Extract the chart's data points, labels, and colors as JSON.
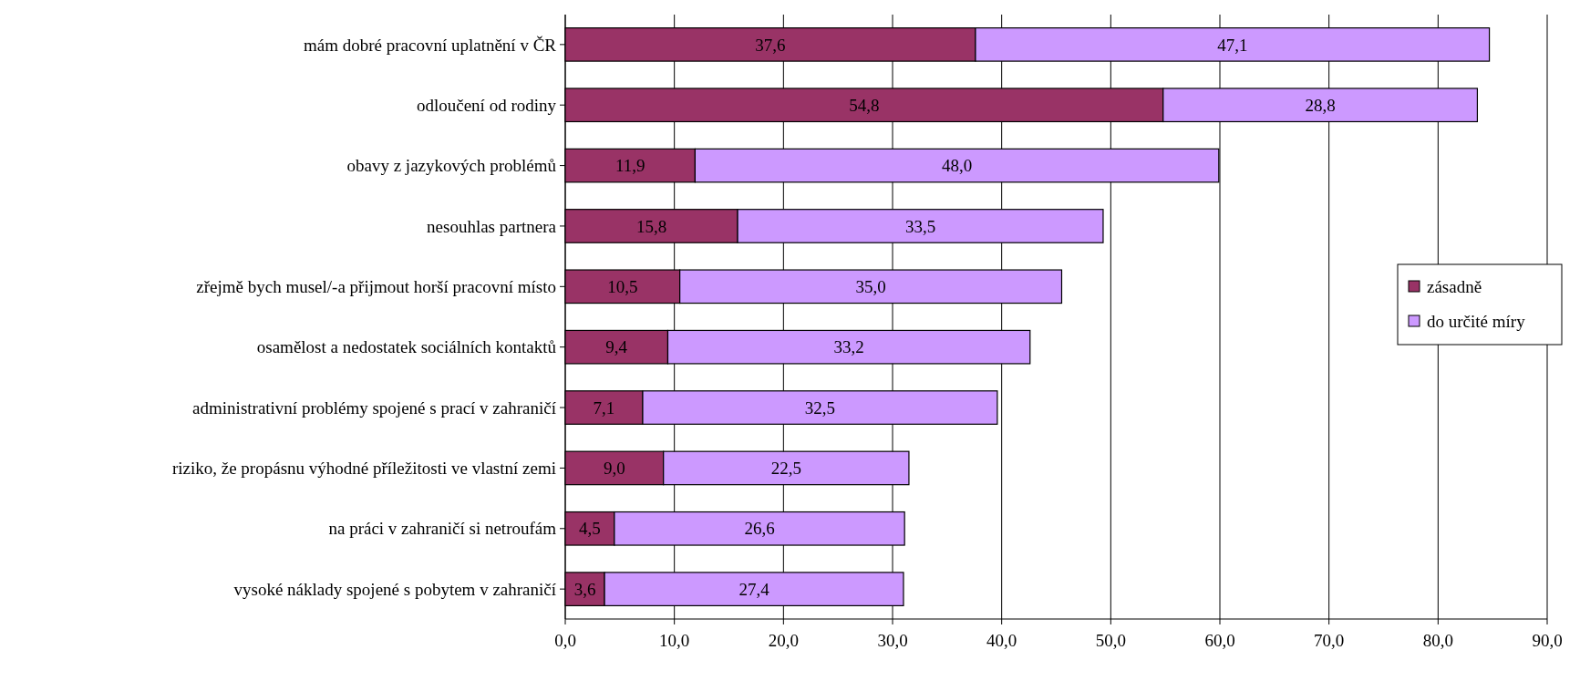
{
  "chart_data": {
    "type": "bar",
    "orientation": "horizontal",
    "stacked": true,
    "categories": [
      "mám dobré pracovní uplatnění v ČR",
      "odloučení od rodiny",
      "obavy z jazykových problémů",
      "nesouhlas partnera",
      "zřejmě bych musel/-a přijmout horší pracovní místo",
      "osamělost a nedostatek sociálních kontaktů",
      "administrativní problémy spojené s prací v zahraničí",
      "riziko, že propásnu výhodné příležitosti ve vlastní zemi",
      "na práci v zahraničí si netroufám",
      "vysoké náklady spojené s pobytem v zahraničí"
    ],
    "series": [
      {
        "name": "zásadně",
        "color": "#993366",
        "values": [
          37.6,
          54.8,
          11.9,
          15.8,
          10.5,
          9.4,
          7.1,
          9.0,
          4.5,
          3.6
        ],
        "value_labels": [
          "37,6",
          "54,8",
          "11,9",
          "15,8",
          "10,5",
          "9,4",
          "7,1",
          "9,0",
          "4,5",
          "3,6"
        ]
      },
      {
        "name": "do určité míry",
        "color": "#cc99ff",
        "values": [
          47.1,
          28.8,
          48.0,
          33.5,
          35.0,
          33.2,
          32.5,
          22.5,
          26.6,
          27.4
        ],
        "value_labels": [
          "47,1",
          "28,8",
          "48,0",
          "33,5",
          "35,0",
          "33,2",
          "32,5",
          "22,5",
          "26,6",
          "27,4"
        ]
      }
    ],
    "xlim": [
      0,
      90
    ],
    "xticks": [
      {
        "value": 0,
        "label": "0,0"
      },
      {
        "value": 10,
        "label": "10,0"
      },
      {
        "value": 20,
        "label": "20,0"
      },
      {
        "value": 30,
        "label": "30,0"
      },
      {
        "value": 40,
        "label": "40,0"
      },
      {
        "value": 50,
        "label": "50,0"
      },
      {
        "value": 60,
        "label": "60,0"
      },
      {
        "value": 70,
        "label": "70,0"
      },
      {
        "value": 80,
        "label": "80,0"
      },
      {
        "value": 90,
        "label": "90,0"
      }
    ],
    "grid": "x",
    "legend": "right"
  }
}
